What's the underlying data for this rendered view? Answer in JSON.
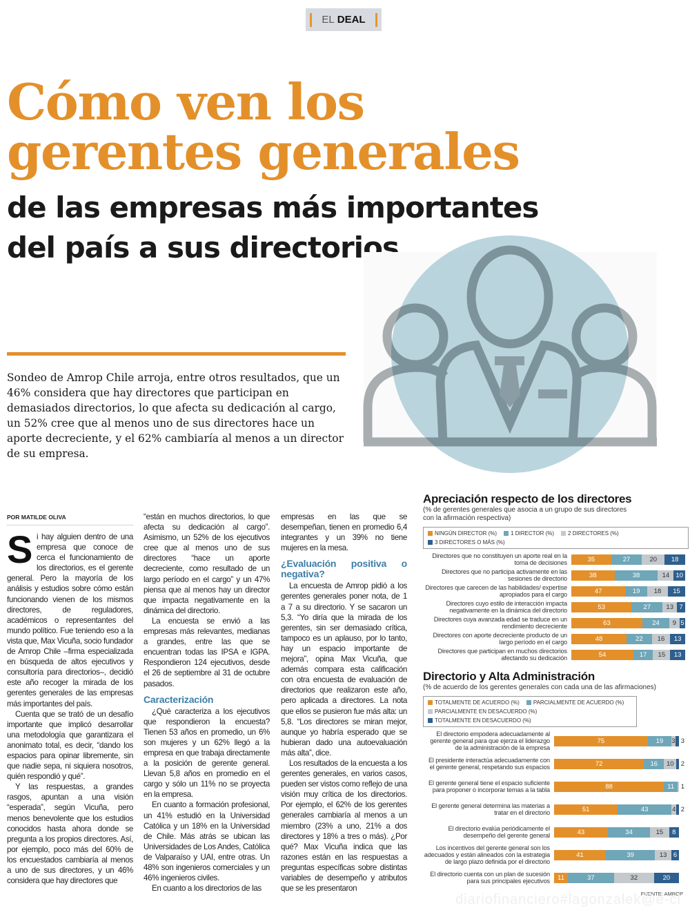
{
  "section": {
    "prefix": "EL",
    "name": "DEAL"
  },
  "headline": {
    "title_lines": [
      "Cómo ven los",
      "gerentes generales"
    ],
    "subtitle_lines": [
      "de las empresas más importantes",
      "del país a sus directorios"
    ]
  },
  "lead": "Sondeo de Amrop Chile arroja, entre otros resultados, que un 46% considera que hay directores que participan en demasiados directorios, lo que afecta su dedicación al cargo, un 52% cree que al menos uno de sus directores hace un aporte decreciente, y el 62% cambiaría al menos a un director de su empresa.",
  "byline": "POR MATILDE OLIVA",
  "article": {
    "col1": {
      "dropcap": "S",
      "p1": "i hay alguien dentro de una empresa que conoce de cerca el funcionamiento de los directorios, es el gerente general. Pero la mayoría de los análisis y estudios sobre cómo están funcionando vienen de los mismos directores, de reguladores, académicos o representantes del mundo político. Fue teniendo eso a la vista que, Max Vicuña, socio fundador de Amrop Chile –firma especializada en búsqueda de altos ejecutivos y consultoría para directorios–, decidió este año recoger la mirada de los gerentes generales de las empresas más importantes del país.",
      "p2": "Cuenta que se trató de un desafío importante que implicó desarrollar una metodología que garantizara el anonimato total, es decir, “dando los espacios para opinar libremente, sin que nadie sepa, ni siquiera nosotros, quién respondió y qué”.",
      "p3": "Y las respuestas, a grandes rasgos, apuntan a una visión “esperada”, según Vicuña, pero menos benevolente que los estudios conocidos hasta ahora donde se pregunta a los propios directores. Así, por ejemplo, poco más del 60% de los encuestados cambiaría al menos a uno de sus directores, y un 46% considera que hay directores que"
    },
    "col2": {
      "p1": "“están en muchos directorios, lo que afecta su dedicación al cargo”. Asimismo, un 52% de los ejecutivos cree que al menos uno de sus directores “hace un aporte decreciente, como resultado de un largo período en el cargo” y un 47% piensa que al menos hay un director que impacta negativamente en la dinámica del directorio.",
      "p2": "La encuesta se envió a las empresas más relevantes, medianas a grandes, entre las que se encuentran todas las IPSA e IGPA. Respondieron 124 ejecutivos, desde el 26 de septiembre al 31 de octubre pasados.",
      "h1": "Caracterización",
      "p3": "¿Qué caracteriza a los ejecutivos que respondieron la encuesta? Tienen 53 años en promedio, un 6% son mujeres y un 62% llegó a la empresa en que trabaja directamente a la posición de gerente general. Llevan 5,8 años en promedio en el cargo y sólo un 11% no se proyecta en la empresa.",
      "p4": "En cuanto a formación profesional, un 41% estudió en la Universidad Católica y un 18% en la Universidad de Chile. Más atrás se ubican las Universidades de Los Andes, Católica de Valparaíso y UAI, entre otras. Un 48% son ingenieros comerciales y un 46% ingenieros civiles.",
      "p5": "En cuanto a los directorios de las"
    },
    "col3": {
      "p1": "empresas en las que se desempeñan, tienen en promedio 6,4 integrantes y un 39% no tiene mujeres en la mesa.",
      "h1": "¿Evaluación positiva o negativa?",
      "p2": "La encuesta de Amrop pidió a los gerentes generales poner nota, de 1 a 7 a su directorio. Y se sacaron un 5,3. “Yo diría que la mirada de los gerentes, sin ser demasiado crítica, tampoco es un aplauso, por lo tanto, hay un espacio importante de mejora”, opina Max Vicuña, que además compara esta calificación con otra encuesta de evaluación de directorios que realizaron este año, pero aplicada a directores. La nota que ellos se pusieron fue más alta: un 5,8. “Los directores se miran mejor, aunque yo habría esperado que se hubieran dado una autoevaluación más alta”, dice.",
      "p3": "Los resultados de la encuesta a los gerentes generales, en varios casos, pueden ser vistos como reflejo de una visión muy crítica de los directorios. Por ejemplo, el 62% de los gerentes generales cambiaría al menos a un miembro (23% a uno, 21% a dos directores y 18% a tres o más). ¿Por qué? Max Vicuña indica que las razones están en las respuestas a preguntas específicas sobre distintas variables de desempeño y atributos que se les presentaron"
    }
  },
  "colors": {
    "orange": "#e3902b",
    "light_blue": "#6fa6b8",
    "gray": "#c4c9cd",
    "dark_blue": "#2e5f8e"
  },
  "chart_data": [
    {
      "type": "bar",
      "orientation": "horizontal-stacked",
      "title": "Apreciación respecto de los directores",
      "subtitle": "(% de gerentes generales que asocia a un grupo de sus directores con la afirmación respectiva)",
      "legend_placement": "top",
      "series_names": [
        "NINGÚN DIRECTOR (%)",
        "1 DIRECTOR (%)",
        "2 DIRECTORES (%)",
        "3 DIRECTORES O MÁS (%)"
      ],
      "categories": [
        "Directores que no constituyen un aporte real en la toma de decisiones",
        "Directores que no participa activamente en las sesiones de directorio",
        "Directores que carecen de las habilidades/ expertise apropiados para el cargo",
        "Directores cuyo estilo de interacción impacta negativamente en la dinámica del directorio",
        "Directores cuya avanzada edad se traduce en un rendimiento decreciente",
        "Directores con aporte decreciente producto de un largo período en el cargo",
        "Directores que participan en muchos directorios afectando su dedicación"
      ],
      "values": [
        [
          35,
          27,
          20,
          18
        ],
        [
          38,
          38,
          14,
          10
        ],
        [
          47,
          19,
          18,
          15
        ],
        [
          53,
          27,
          13,
          7
        ],
        [
          63,
          24,
          9,
          5
        ],
        [
          48,
          22,
          16,
          13
        ],
        [
          54,
          17,
          15,
          13
        ]
      ]
    },
    {
      "type": "bar",
      "orientation": "horizontal-stacked",
      "title": "Directorio y Alta Administración",
      "subtitle": "(% de acuerdo de los gerentes generales con cada una de las afirmaciones)",
      "legend_placement": "top",
      "series_names": [
        "TOTALMENTE DE ACUERDO (%)",
        "PARCIALMENTE DE ACUERDO (%)",
        "PARCIALMENTE EN DESACUERDO (%)",
        "TOTALMENTE EN DESACUERDO (%)"
      ],
      "categories": [
        "El directorio empodera adecuadamente al gerente general para que ejerza el liderazgo de la administración de la empresa",
        "El presidente interactúa adecuadamente con el gerente general, respetando sus espacios",
        "El gerente general tiene el espacio suficiente para proponer o incorporar temas a la tabla",
        "El gerente general determina las materias a tratar en el directorio",
        "El directorio evalúa periódicamente el desempeño del gerente general",
        "Los incentivos del gerente general son los adecuados y están alineados con la estrategia de largo plazo definida por el directorio",
        "El directorio cuenta con un plan de sucesión para sus principales ejecutivos"
      ],
      "values": [
        [
          75,
          19,
          3,
          3
        ],
        [
          72,
          16,
          10,
          2
        ],
        [
          88,
          11,
          1,
          0
        ],
        [
          51,
          43,
          4,
          2
        ],
        [
          43,
          34,
          15,
          8
        ],
        [
          41,
          39,
          13,
          6
        ],
        [
          11,
          37,
          32,
          20
        ]
      ],
      "source": "FUENTE: AMROP"
    }
  ],
  "watermark": "diariofinanciero#lagonzalek@e-cl"
}
